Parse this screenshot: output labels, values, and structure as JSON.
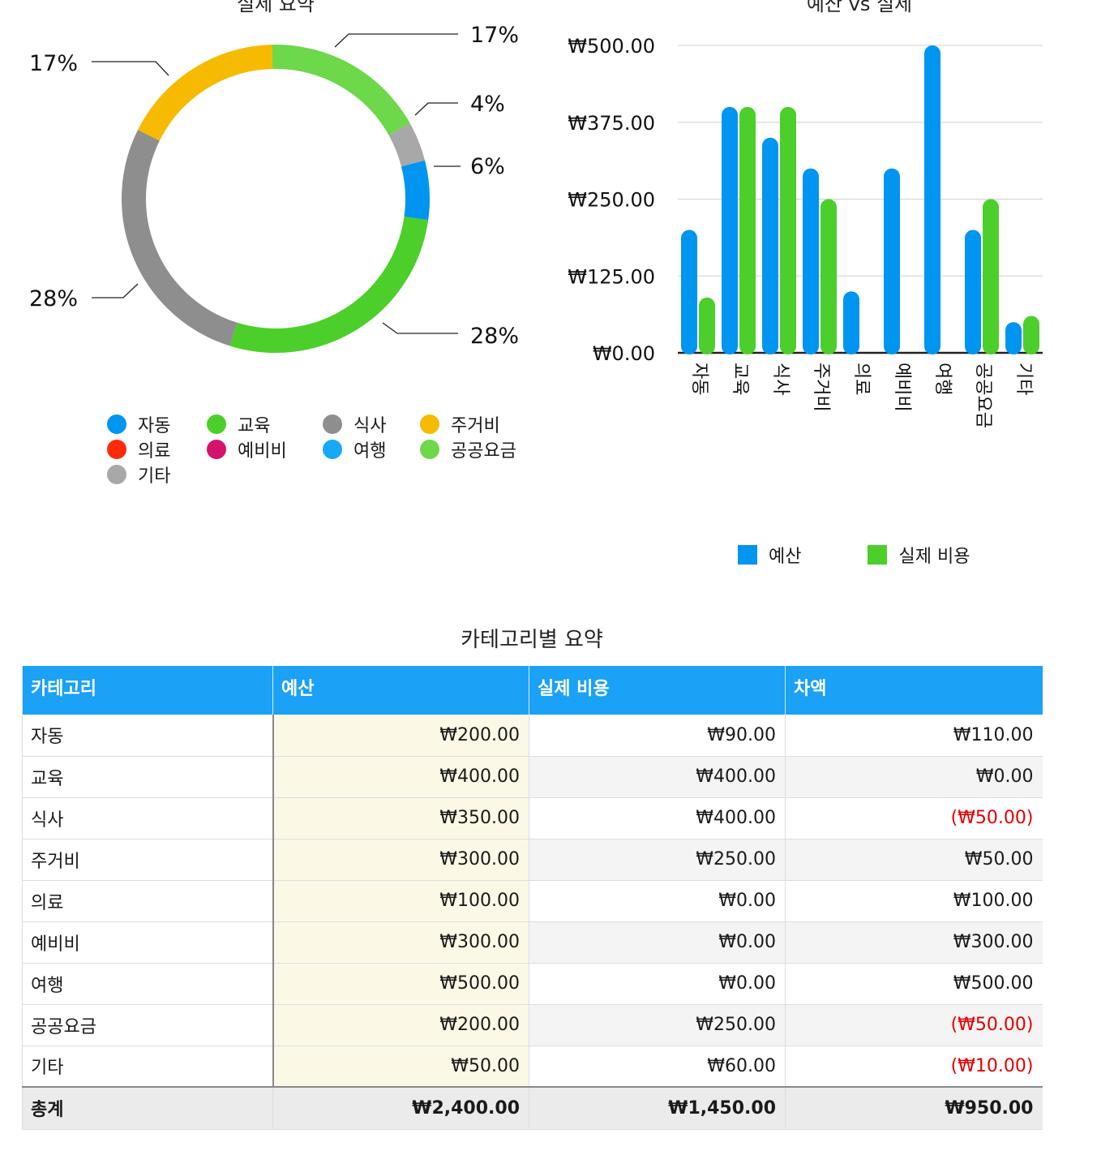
{
  "donut": {
    "title": "실제 요약",
    "labels": [
      "17%",
      "4%",
      "6%",
      "28%",
      "28%",
      "17%"
    ],
    "legend": [
      {
        "label": "자동",
        "color": "#0095f0"
      },
      {
        "label": "교육",
        "color": "#4ccf2a"
      },
      {
        "label": "식사",
        "color": "#8e8e8e"
      },
      {
        "label": "주거비",
        "color": "#f6bb00"
      },
      {
        "label": "의료",
        "color": "#ff2a0a"
      },
      {
        "label": "예비비",
        "color": "#d4146c"
      },
      {
        "label": "여행",
        "color": "#18a8f8"
      },
      {
        "label": "공공요금",
        "color": "#6dd84a"
      },
      {
        "label": "기타",
        "color": "#a8a8a8"
      }
    ]
  },
  "chart_data": {
    "type": "bar",
    "title": "예산 vs 실제",
    "categories": [
      "자동",
      "교육",
      "식사",
      "주거비",
      "의료",
      "예비비",
      "여행",
      "공공요금",
      "기타"
    ],
    "series": [
      {
        "name": "예산",
        "color": "#0095f0",
        "values": [
          200,
          400,
          350,
          300,
          100,
          300,
          500,
          200,
          50
        ]
      },
      {
        "name": "실제 비용",
        "color": "#4ccf2a",
        "values": [
          90,
          400,
          400,
          250,
          0,
          0,
          0,
          250,
          60
        ]
      }
    ],
    "ylim": [
      0,
      500
    ],
    "yticks": [
      0,
      125,
      250,
      375,
      500
    ],
    "ytick_labels": [
      "₩0.00",
      "₩125.00",
      "₩250.00",
      "₩375.00",
      "₩500.00"
    ],
    "grid": true,
    "legend_position": "bottom"
  },
  "table": {
    "title": "카테고리별 요약",
    "headers": [
      "카테고리",
      "예산",
      "실제 비용",
      "차액"
    ],
    "rows": [
      {
        "cat": "자동",
        "budget": "₩200.00",
        "actual": "₩90.00",
        "diff": "₩110.00",
        "neg": false
      },
      {
        "cat": "교육",
        "budget": "₩400.00",
        "actual": "₩400.00",
        "diff": "₩0.00",
        "neg": false
      },
      {
        "cat": "식사",
        "budget": "₩350.00",
        "actual": "₩400.00",
        "diff": "(₩50.00)",
        "neg": true
      },
      {
        "cat": "주거비",
        "budget": "₩300.00",
        "actual": "₩250.00",
        "diff": "₩50.00",
        "neg": false
      },
      {
        "cat": "의료",
        "budget": "₩100.00",
        "actual": "₩0.00",
        "diff": "₩100.00",
        "neg": false
      },
      {
        "cat": "예비비",
        "budget": "₩300.00",
        "actual": "₩0.00",
        "diff": "₩300.00",
        "neg": false
      },
      {
        "cat": "여행",
        "budget": "₩500.00",
        "actual": "₩0.00",
        "diff": "₩500.00",
        "neg": false
      },
      {
        "cat": "공공요금",
        "budget": "₩200.00",
        "actual": "₩250.00",
        "diff": "(₩50.00)",
        "neg": true
      },
      {
        "cat": "기타",
        "budget": "₩50.00",
        "actual": "₩60.00",
        "diff": "(₩10.00)",
        "neg": true
      }
    ],
    "total": {
      "cat": "총계",
      "budget": "₩2,400.00",
      "actual": "₩1,450.00",
      "diff": "₩950.00"
    }
  }
}
